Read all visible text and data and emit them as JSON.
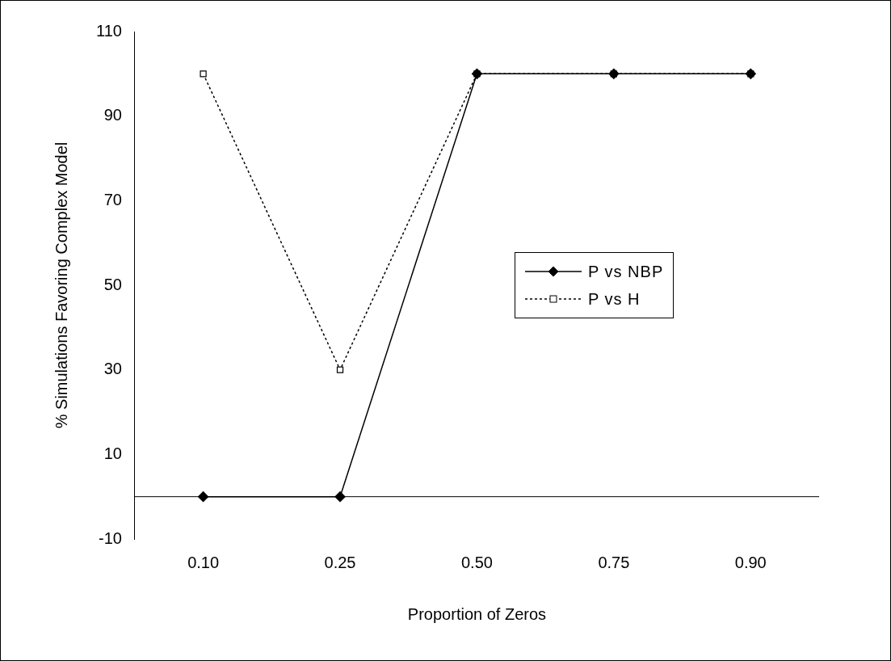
{
  "chart_data": {
    "type": "line",
    "xlabel": "Proportion of Zeros",
    "ylabel": "% Simulations Favoring Complex Model",
    "categories": [
      "0.10",
      "0.25",
      "0.50",
      "0.75",
      "0.90"
    ],
    "series": [
      {
        "name": "P vs NBP",
        "color": "#000000",
        "values": [
          0,
          0,
          100,
          100,
          100
        ],
        "marker": "diamond",
        "line_style": "solid"
      },
      {
        "name": "P vs H",
        "color": "#000000",
        "values": [
          100,
          30,
          100,
          100,
          100
        ],
        "marker": "square",
        "line_style": "dotted"
      }
    ],
    "ylim": [
      -10,
      110
    ],
    "yticks": [
      -10,
      10,
      30,
      50,
      70,
      90,
      110
    ],
    "grid": false,
    "legend": "right"
  }
}
